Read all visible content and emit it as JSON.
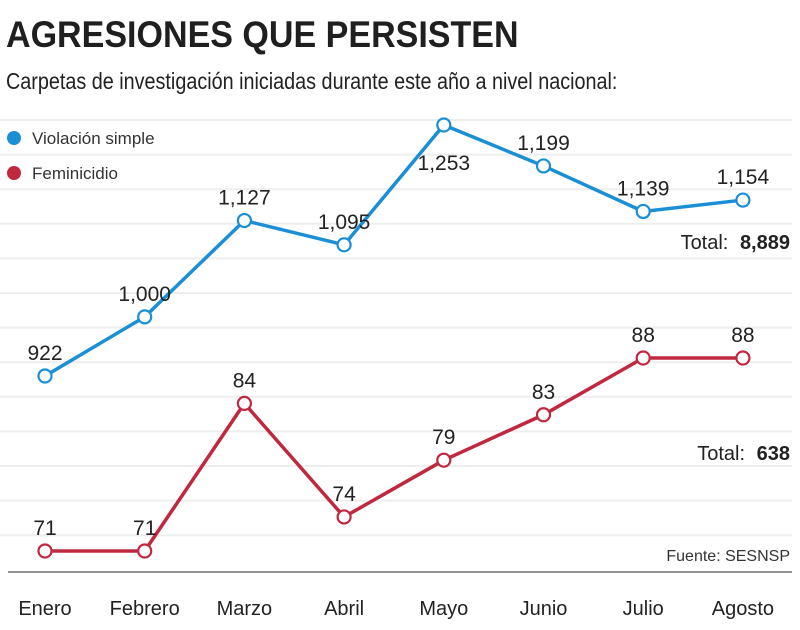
{
  "header": {
    "title": "AGRESIONES QUE PERSISTEN",
    "subtitle": "Carpetas de investigación iniciadas durante este año a nivel nacional:"
  },
  "chart_data": {
    "type": "line",
    "title": "AGRESIONES QUE PERSISTEN",
    "subtitle": "Carpetas de investigación iniciadas durante este año a nivel nacional:",
    "xlabel": "",
    "ylabel": "",
    "categories": [
      "Enero",
      "Febrero",
      "Marzo",
      "Abril",
      "Mayo",
      "Junio",
      "Julio",
      "Agosto"
    ],
    "series": [
      {
        "name": "Violación simple",
        "color": "#1a8fd6",
        "values": [
          922,
          1000,
          1127,
          1095,
          1253,
          1199,
          1139,
          1154
        ],
        "labels": [
          "922",
          "1,000",
          "1,127",
          "1,095",
          "1,253",
          "1,199",
          "1,139",
          "1,154"
        ],
        "total_label": "Total:",
        "total_value": "8,889"
      },
      {
        "name": "Feminicidio",
        "color": "#c0283f",
        "values": [
          71,
          71,
          84,
          74,
          79,
          83,
          88,
          88
        ],
        "labels": [
          "71",
          "71",
          "84",
          "74",
          "79",
          "83",
          "88",
          "88"
        ],
        "total_label": "Total:",
        "total_value": "638"
      }
    ],
    "legend": "top-left",
    "grid": true,
    "source": "Fuente: SESNSP"
  }
}
